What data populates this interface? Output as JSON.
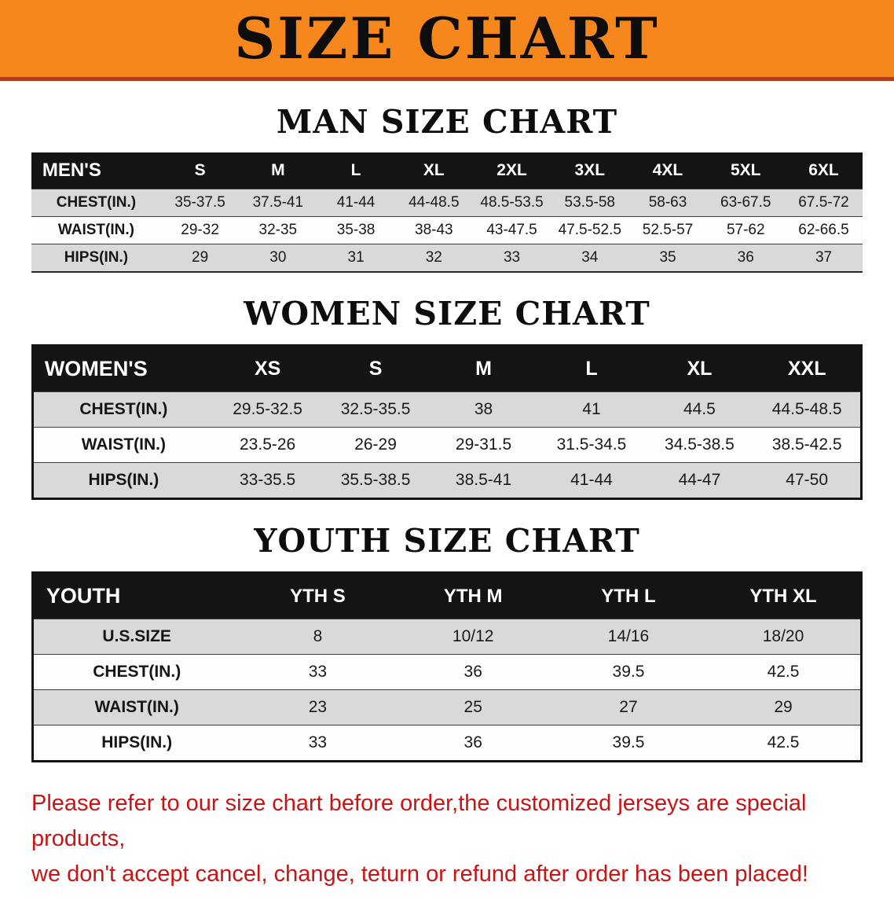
{
  "banner": {
    "title": "SIZE CHART",
    "bg_color": "#f6871d",
    "underline_color": "#b23c1c"
  },
  "sections": [
    {
      "heading": "MAN SIZE CHART",
      "table": {
        "header": [
          "MEN'S",
          "S",
          "M",
          "L",
          "XL",
          "2XL",
          "3XL",
          "4XL",
          "5XL",
          "6XL"
        ],
        "rows": [
          [
            "CHEST(IN.)",
            "35-37.5",
            "37.5-41",
            "41-44",
            "44-48.5",
            "48.5-53.5",
            "53.5-58",
            "58-63",
            "63-67.5",
            "67.5-72"
          ],
          [
            "WAIST(IN.)",
            "29-32",
            "32-35",
            "35-38",
            "38-43",
            "43-47.5",
            "47.5-52.5",
            "52.5-57",
            "57-62",
            "62-66.5"
          ],
          [
            "HIPS(IN.)",
            "29",
            "30",
            "31",
            "32",
            "33",
            "34",
            "35",
            "36",
            "37"
          ]
        ]
      }
    },
    {
      "heading": "WOMEN SIZE CHART",
      "table": {
        "header": [
          "WOMEN'S",
          "XS",
          "S",
          "M",
          "L",
          "XL",
          "XXL"
        ],
        "rows": [
          [
            "CHEST(IN.)",
            "29.5-32.5",
            "32.5-35.5",
            "38",
            "41",
            "44.5",
            "44.5-48.5"
          ],
          [
            "WAIST(IN.)",
            "23.5-26",
            "26-29",
            "29-31.5",
            "31.5-34.5",
            "34.5-38.5",
            "38.5-42.5"
          ],
          [
            "HIPS(IN.)",
            "33-35.5",
            "35.5-38.5",
            "38.5-41",
            "41-44",
            "44-47",
            "47-50"
          ]
        ]
      }
    },
    {
      "heading": "YOUTH SIZE CHART",
      "table": {
        "header": [
          "YOUTH",
          "YTH S",
          "YTH M",
          "YTH L",
          "YTH XL"
        ],
        "rows": [
          [
            "U.S.SIZE",
            "8",
            "10/12",
            "14/16",
            "18/20"
          ],
          [
            "CHEST(IN.)",
            "33",
            "36",
            "39.5",
            "42.5"
          ],
          [
            "WAIST(IN.)",
            "23",
            "25",
            "27",
            "29"
          ],
          [
            "HIPS(IN.)",
            "33",
            "36",
            "39.5",
            "42.5"
          ]
        ]
      }
    }
  ],
  "notice": {
    "line1": "Please refer to our size chart before order,the customized jerseys are special products,",
    "line2": "we don't accept cancel, change, teturn or refund after order has been placed!",
    "text_color": "#c81414"
  }
}
